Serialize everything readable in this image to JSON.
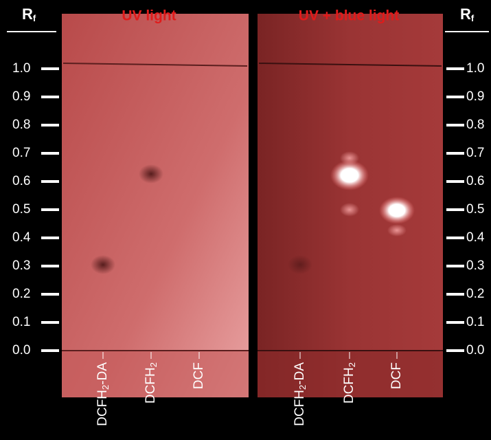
{
  "panels": [
    {
      "title": "UV light"
    },
    {
      "title": "UV + blue light"
    }
  ],
  "axis": {
    "label": "R",
    "subscript": "f",
    "ticks": [
      "1.0",
      "0.9",
      "0.8",
      "0.7",
      "0.6",
      "0.5",
      "0.4",
      "0.3",
      "0.2",
      "0.1",
      "0.0"
    ]
  },
  "lanes": [
    [
      "DCFH",
      "2",
      "-DA"
    ],
    [
      "DCFH",
      "2",
      ""
    ],
    [
      "DCF",
      "",
      ""
    ]
  ]
}
